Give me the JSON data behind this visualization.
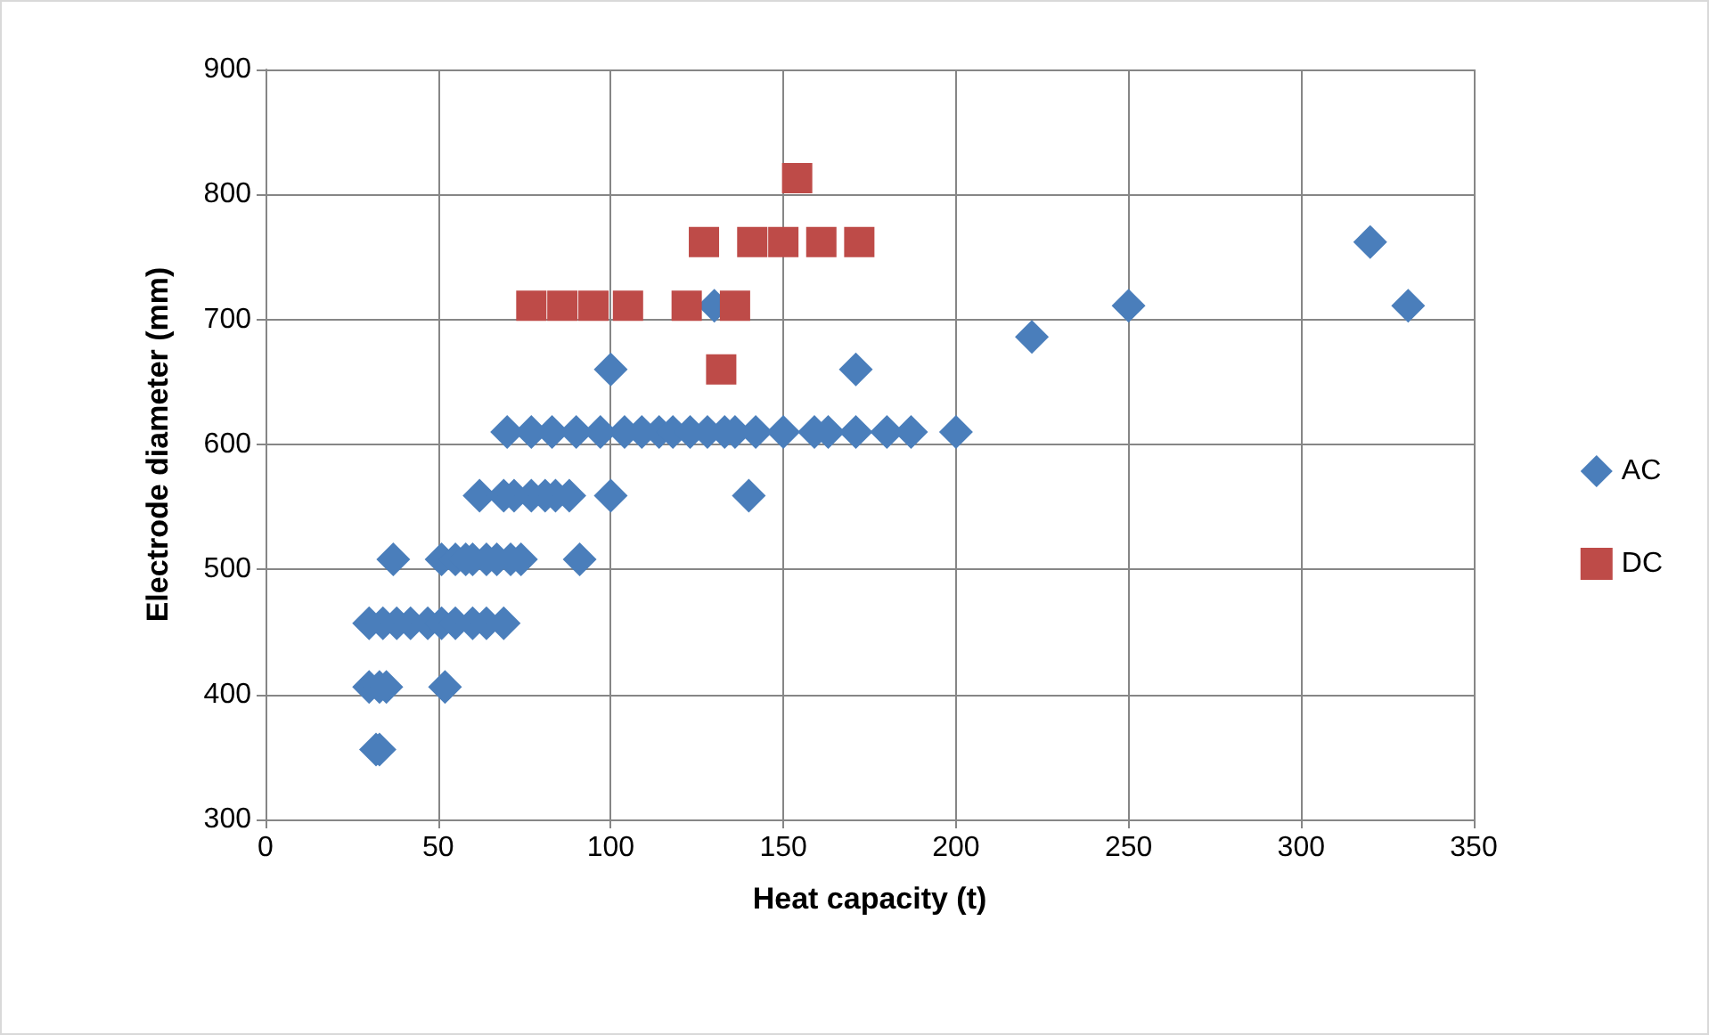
{
  "chart_data": {
    "type": "scatter",
    "xlabel": "Heat capacity (t)",
    "ylabel": "Electrode diameter (mm)",
    "xlim": [
      0,
      350
    ],
    "xticks": [
      0,
      50,
      100,
      150,
      200,
      250,
      300,
      350
    ],
    "ylim": [
      300,
      900
    ],
    "yticks": [
      300,
      400,
      500,
      600,
      700,
      800,
      900
    ],
    "grid": true,
    "legend": "right",
    "series": [
      {
        "name": "AC",
        "color": "#4a7ebb",
        "marker": "diamond",
        "x": [
          32,
          33,
          30,
          33,
          35,
          52,
          30,
          34,
          38,
          42,
          47,
          51,
          55,
          60,
          64,
          69,
          37,
          51,
          55,
          58,
          60,
          64,
          67,
          71,
          74,
          91,
          62,
          69,
          72,
          77,
          81,
          84,
          88,
          100,
          140,
          70,
          77,
          83,
          90,
          97,
          104,
          109,
          114,
          118,
          123,
          128,
          133,
          136,
          142,
          150,
          159,
          163,
          171,
          180,
          187,
          200,
          100,
          171,
          130,
          222,
          250,
          320,
          331
        ],
        "values": [
          356,
          356,
          406,
          406,
          406,
          406,
          457,
          457,
          457,
          457,
          457,
          457,
          457,
          457,
          457,
          457,
          508,
          508,
          508,
          508,
          508,
          508,
          508,
          508,
          508,
          508,
          559,
          559,
          559,
          559,
          559,
          559,
          559,
          559,
          559,
          610,
          610,
          610,
          610,
          610,
          610,
          610,
          610,
          610,
          610,
          610,
          610,
          610,
          610,
          610,
          610,
          610,
          610,
          610,
          610,
          610,
          660,
          660,
          711,
          686,
          711,
          762,
          711
        ]
      },
      {
        "name": "DC",
        "color": "#be4b48",
        "marker": "square",
        "x": [
          77,
          86,
          95,
          105,
          122,
          136,
          127,
          141,
          150,
          161,
          172,
          154,
          132
        ],
        "values": [
          711,
          711,
          711,
          711,
          711,
          711,
          762,
          762,
          762,
          762,
          762,
          813,
          660
        ]
      }
    ]
  }
}
